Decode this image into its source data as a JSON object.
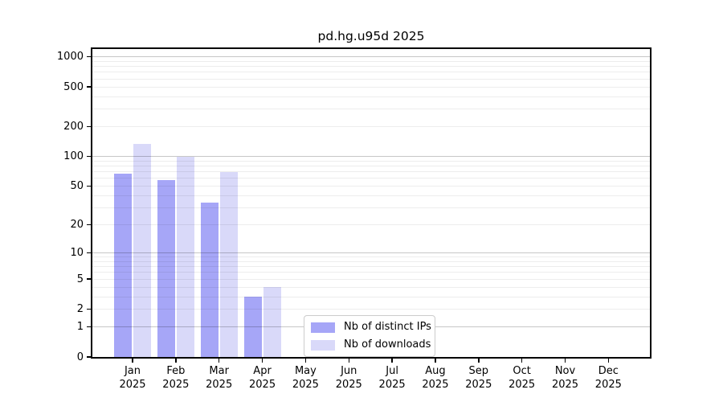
{
  "chart_data": {
    "type": "bar",
    "title": "pd.hg.u95d 2025",
    "categories": [
      "Jan",
      "Feb",
      "Mar",
      "Apr",
      "May",
      "Jun",
      "Jul",
      "Aug",
      "Sep",
      "Oct",
      "Nov",
      "Dec"
    ],
    "x_tick_year": "2025",
    "series": [
      {
        "name": "Nb of distinct IPs",
        "color": "#a6a6f7",
        "values": [
          67,
          58,
          34,
          3,
          0,
          0,
          0,
          0,
          0,
          0,
          0,
          0
        ]
      },
      {
        "name": "Nb of downloads",
        "color": "#d9d9f9",
        "values": [
          135,
          100,
          70,
          4,
          0,
          0,
          0,
          0,
          0,
          0,
          0,
          0
        ]
      }
    ],
    "y_scale": "log10(1+x)",
    "y_tick_labels": [
      0,
      1,
      2,
      5,
      10,
      20,
      50,
      100,
      200,
      500,
      1000
    ],
    "major_grid_values": [
      1,
      10,
      100,
      1000
    ],
    "minor_grid_values": [
      2,
      3,
      4,
      5,
      6,
      7,
      8,
      9,
      20,
      30,
      40,
      50,
      60,
      70,
      80,
      90,
      200,
      300,
      400,
      500,
      600,
      700,
      800,
      900
    ],
    "ylim": [
      0,
      1240
    ],
    "grid": true,
    "legend_position": "lower center",
    "colors": {
      "major_grid": "rgba(0,0,0,0.22)",
      "minor_grid": "rgba(0,0,0,0.07)",
      "axis": "#000000",
      "text": "#000000",
      "legend_border": "#cccccc",
      "background": "#ffffff"
    }
  }
}
